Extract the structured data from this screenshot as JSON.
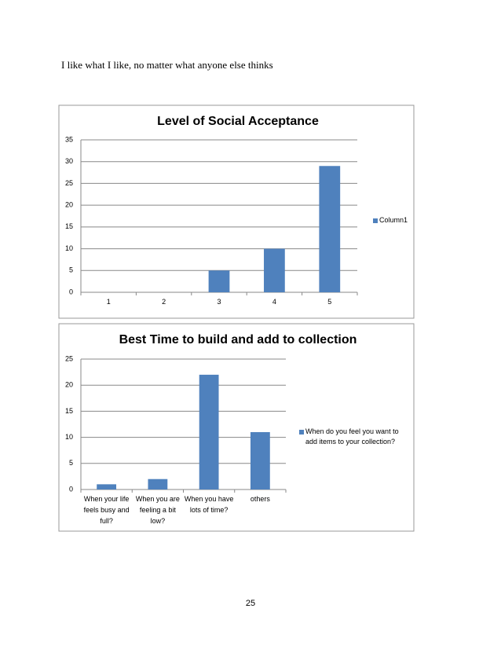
{
  "text": "I like what I like, no matter what anyone else thinks",
  "chart_data": [
    {
      "type": "bar",
      "title": "Level of Social Acceptance",
      "categories": [
        "1",
        "2",
        "3",
        "4",
        "5"
      ],
      "series": [
        {
          "name": "Column1",
          "color": "#4f81bd",
          "values": [
            0,
            0,
            5,
            10,
            29
          ]
        }
      ],
      "ylim": [
        0,
        35
      ],
      "yticks": [
        0,
        5,
        10,
        15,
        20,
        25,
        30,
        35
      ],
      "grid": true,
      "legend": "right"
    },
    {
      "type": "bar",
      "title": "Best Time to build and add to collection",
      "categories": [
        "When your life feels busy and full?",
        "When you are feeling a bit low?",
        "When you have lots of time?",
        "others"
      ],
      "series": [
        {
          "name": "When do you feel you want to add items to your collection?",
          "color": "#4f81bd",
          "values": [
            1,
            2,
            22,
            11
          ]
        }
      ],
      "ylim": [
        0,
        25
      ],
      "yticks": [
        0,
        5,
        10,
        15,
        20,
        25
      ],
      "grid": true,
      "legend": "right"
    }
  ],
  "page_number": "25"
}
